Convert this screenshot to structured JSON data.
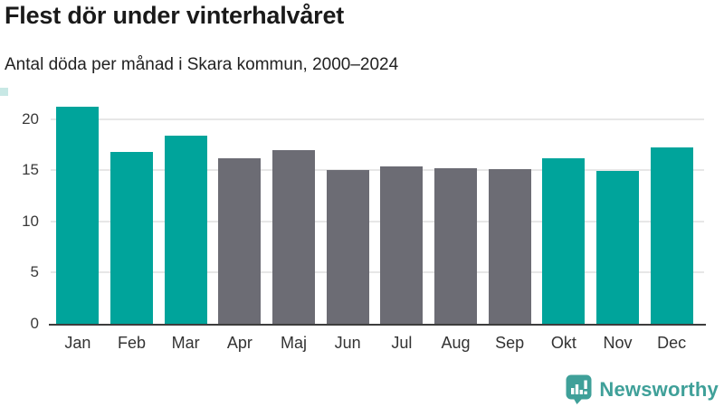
{
  "header": {
    "title": "Flest dör under vinterhalvåret",
    "subtitle": "Antal döda per månad i Skara kommun, 2000–2024"
  },
  "chart_data": {
    "type": "bar",
    "title": "Flest dör under vinterhalvåret",
    "subtitle": "Antal döda per månad i Skara kommun, 2000–2024",
    "categories": [
      "Jan",
      "Feb",
      "Mar",
      "Apr",
      "Maj",
      "Jun",
      "Jul",
      "Aug",
      "Sep",
      "Okt",
      "Nov",
      "Dec"
    ],
    "values": [
      21.2,
      16.8,
      18.4,
      16.2,
      17.0,
      15.0,
      15.4,
      15.2,
      15.1,
      16.2,
      14.9,
      17.2
    ],
    "highlighted": [
      true,
      true,
      true,
      false,
      false,
      false,
      false,
      false,
      false,
      true,
      true,
      true
    ],
    "xlabel": "",
    "ylabel": "",
    "ylim": [
      0,
      22
    ],
    "yticks": [
      0,
      5,
      10,
      15,
      20
    ],
    "grid": true,
    "legend": "none",
    "colors": {
      "highlight_bar": "#00a49b",
      "default_bar": "#6c6c74",
      "gridline": "#e7e7e7",
      "axis_line": "#3d3d3d",
      "corner_accent": "#c8e8e5"
    }
  },
  "footer": {
    "brand": "Newsworthy",
    "logo_icon": "newsworthy-speech-bubble-bars-icon",
    "brand_color": "#3fa099"
  }
}
